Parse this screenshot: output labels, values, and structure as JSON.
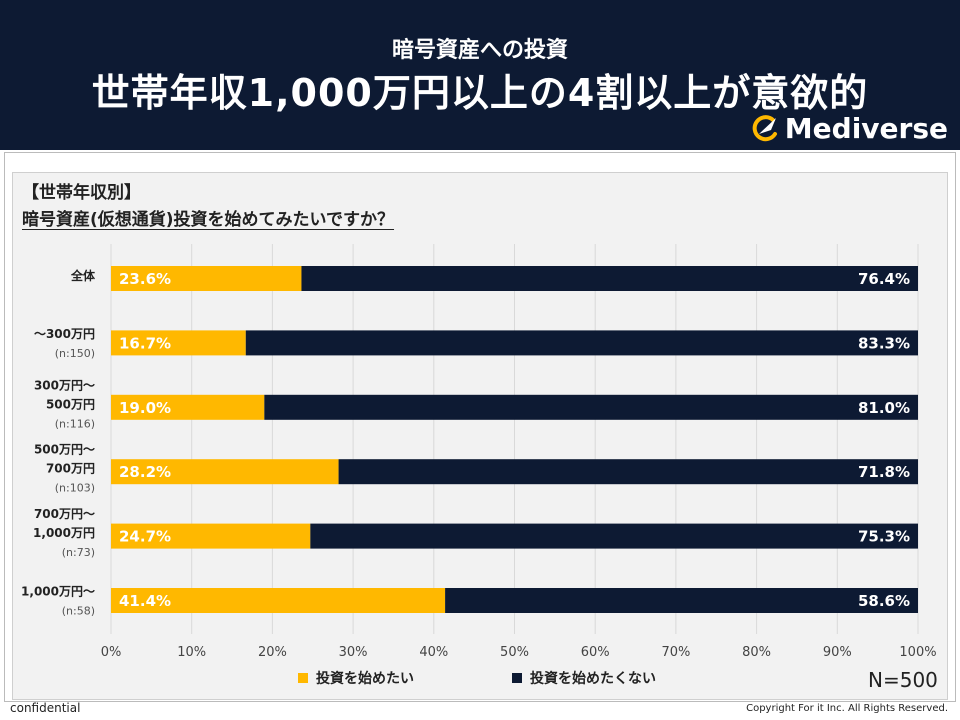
{
  "header": {
    "subtitle": "暗号資産への投資",
    "title": "世帯年収1,000万円以上の4割以上が意欲的",
    "logo_text": "Mediverse"
  },
  "question": {
    "category": "【世帯年収別】",
    "text": "暗号資産(仮想通貨)投資を始めてみたいですか？"
  },
  "colors": {
    "yes": "#ffb800",
    "no": "#0d1a33",
    "header_bg": "#0d1a33"
  },
  "chart_data": {
    "type": "bar",
    "orientation": "horizontal",
    "stacked": "percent",
    "categories": [
      {
        "lines": [
          "全体"
        ],
        "n": ""
      },
      {
        "lines": [
          "～300万円"
        ],
        "n": "(n:150)"
      },
      {
        "lines": [
          "300万円～",
          "500万円"
        ],
        "n": "(n:116)"
      },
      {
        "lines": [
          "500万円～",
          "700万円"
        ],
        "n": "(n:103)"
      },
      {
        "lines": [
          "700万円～",
          "1,000万円"
        ],
        "n": "(n:73)"
      },
      {
        "lines": [
          "1,000万円～"
        ],
        "n": "(n:58)"
      }
    ],
    "series": [
      {
        "name": "投資を始めたい",
        "color": "#ffb800",
        "values": [
          23.6,
          16.7,
          19.0,
          28.2,
          24.7,
          41.4
        ]
      },
      {
        "name": "投資を始めたくない",
        "color": "#0d1a33",
        "values": [
          76.4,
          83.3,
          81.0,
          71.8,
          75.3,
          58.6
        ]
      }
    ],
    "xlim": [
      0,
      100
    ],
    "xticks": [
      "0%",
      "10%",
      "20%",
      "30%",
      "40%",
      "50%",
      "60%",
      "70%",
      "80%",
      "90%",
      "100%"
    ],
    "grid": true,
    "legend": "bottom",
    "total_n": "N=500"
  },
  "footer": {
    "left": "confidential",
    "right": "Copyright For it Inc. All Rights Reserved."
  }
}
